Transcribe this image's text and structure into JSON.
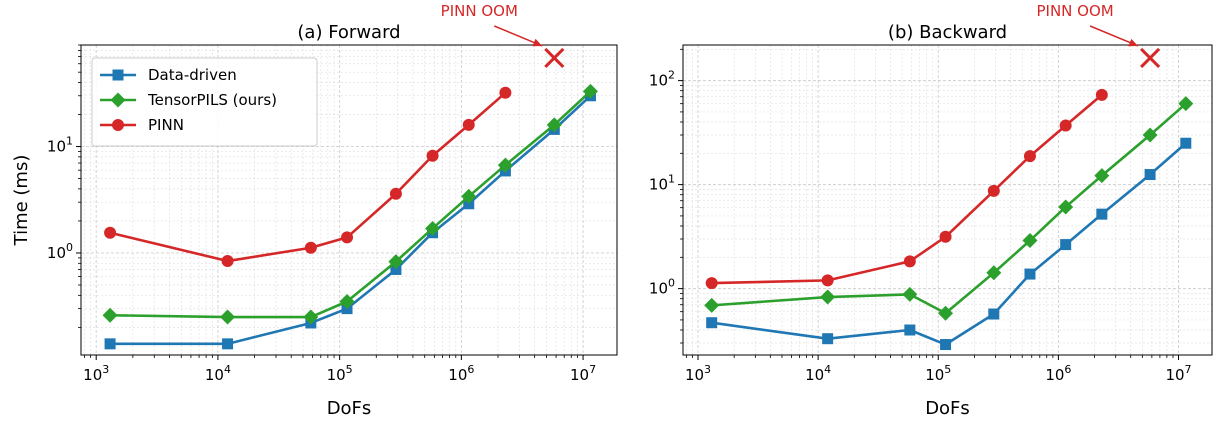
{
  "colors": {
    "data_driven": "#1f77b4",
    "tensorpils": "#2ca02c",
    "pinn": "#d62728",
    "oom": "#d62728"
  },
  "legend": [
    "Data-driven",
    "TensorPILS (ours)",
    "PINN"
  ],
  "chart_data": [
    {
      "type": "line",
      "title": "(a) Forward",
      "xlabel": "DoFs",
      "ylabel": "Time (ms)",
      "xscale": "log",
      "yscale": "log",
      "xlim": [
        750,
        19000000
      ],
      "ylim": [
        0.11,
        90
      ],
      "xticks": [
        {
          "value": 1000,
          "base": "10",
          "exp": "3"
        },
        {
          "value": 10000,
          "base": "10",
          "exp": "4"
        },
        {
          "value": 100000,
          "base": "10",
          "exp": "5"
        },
        {
          "value": 1000000,
          "base": "10",
          "exp": "6"
        },
        {
          "value": 10000000,
          "base": "10",
          "exp": "7"
        }
      ],
      "yticks": [
        {
          "value": 1,
          "base": "10",
          "exp": "0"
        },
        {
          "value": 10,
          "base": "10",
          "exp": "1"
        }
      ],
      "grid": true,
      "legend_position": "upper-left",
      "series": [
        {
          "name": "Data-driven",
          "marker": "square",
          "x": [
            1300,
            12000,
            58000,
            115000,
            290000,
            580000,
            1150000,
            2300000,
            5800000,
            11500000
          ],
          "y": [
            0.14,
            0.14,
            0.22,
            0.3,
            0.7,
            1.55,
            2.9,
            5.9,
            14.5,
            30
          ]
        },
        {
          "name": "TensorPILS (ours)",
          "marker": "diamond",
          "x": [
            1300,
            12000,
            58000,
            115000,
            290000,
            580000,
            1150000,
            2300000,
            5800000,
            11500000
          ],
          "y": [
            0.26,
            0.25,
            0.25,
            0.35,
            0.83,
            1.7,
            3.4,
            6.7,
            16,
            33
          ]
        },
        {
          "name": "PINN",
          "marker": "circle",
          "x": [
            1300,
            12000,
            58000,
            115000,
            290000,
            580000,
            1150000,
            2300000
          ],
          "y": [
            1.55,
            0.84,
            1.12,
            1.4,
            3.6,
            8.2,
            16,
            32
          ]
        }
      ],
      "annotations": [
        {
          "text": "PINN OOM",
          "x": 5800000,
          "y": 68
        }
      ]
    },
    {
      "type": "line",
      "title": "(b) Backward",
      "xlabel": "DoFs",
      "ylabel": "",
      "xscale": "log",
      "yscale": "log",
      "xlim": [
        750,
        19000000
      ],
      "ylim": [
        0.23,
        220
      ],
      "xticks": [
        {
          "value": 1000,
          "base": "10",
          "exp": "3"
        },
        {
          "value": 10000,
          "base": "10",
          "exp": "4"
        },
        {
          "value": 100000,
          "base": "10",
          "exp": "5"
        },
        {
          "value": 1000000,
          "base": "10",
          "exp": "6"
        },
        {
          "value": 10000000,
          "base": "10",
          "exp": "7"
        }
      ],
      "yticks": [
        {
          "value": 1,
          "base": "10",
          "exp": "0"
        },
        {
          "value": 10,
          "base": "10",
          "exp": "1"
        },
        {
          "value": 100,
          "base": "10",
          "exp": "2"
        }
      ],
      "grid": true,
      "legend_position": "none",
      "series": [
        {
          "name": "Data-driven",
          "marker": "square",
          "x": [
            1300,
            12000,
            58000,
            115000,
            290000,
            580000,
            1150000,
            2300000,
            5800000,
            11500000
          ],
          "y": [
            0.47,
            0.33,
            0.4,
            0.29,
            0.57,
            1.38,
            2.65,
            5.2,
            12.5,
            25
          ]
        },
        {
          "name": "TensorPILS (ours)",
          "marker": "diamond",
          "x": [
            1300,
            12000,
            58000,
            115000,
            290000,
            580000,
            1150000,
            2300000,
            5800000,
            11500000
          ],
          "y": [
            0.69,
            0.83,
            0.88,
            0.58,
            1.42,
            2.9,
            6.1,
            12.2,
            30,
            60
          ]
        },
        {
          "name": "PINN",
          "marker": "circle",
          "x": [
            1300,
            12000,
            58000,
            115000,
            290000,
            580000,
            1150000,
            2300000
          ],
          "y": [
            1.13,
            1.2,
            1.83,
            3.15,
            8.7,
            18.8,
            37,
            73
          ]
        }
      ],
      "annotations": [
        {
          "text": "PINN OOM",
          "x": 5800000,
          "y": 165
        }
      ]
    }
  ]
}
